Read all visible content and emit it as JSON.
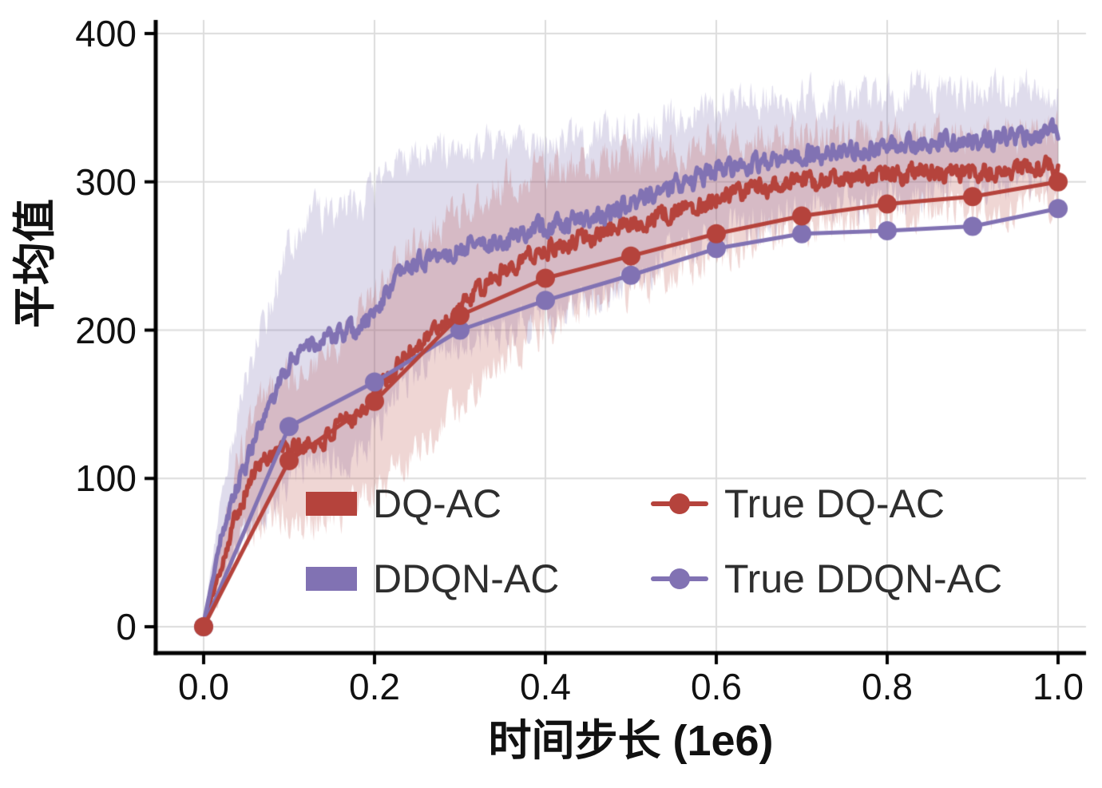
{
  "chart_data": {
    "type": "line",
    "title": "",
    "xlabel": "时间步长 (1e6)",
    "ylabel": "平均值",
    "xlim": [
      0,
      1.0
    ],
    "ylim": [
      0,
      400
    ],
    "xticks": [
      "0.0",
      "0.2",
      "0.4",
      "0.6",
      "0.8",
      "1.0"
    ],
    "xtick_values": [
      0,
      0.2,
      0.4,
      0.6,
      0.8,
      1.0
    ],
    "yticks": [
      "0",
      "100",
      "200",
      "300",
      "400"
    ],
    "ytick_values": [
      0,
      100,
      200,
      300,
      400
    ],
    "grid": true,
    "grid_color": "#dcdcdc",
    "axis_color": "#000000",
    "legend_position": "inside-lower-right",
    "colors": {
      "red": "#b5433c",
      "purple": "#8172b3"
    },
    "series": [
      {
        "name": "DQ-AC",
        "kind": "mean_with_band",
        "color": "#b5433c",
        "band_color": "rgba(181,67,60,0.22)",
        "x_uniform": [
          0,
          1
        ],
        "mean": [
          2,
          40,
          80,
          105,
          118,
          120,
          122,
          125,
          135,
          145,
          155,
          170,
          185,
          195,
          205,
          215,
          225,
          235,
          245,
          250,
          255,
          258,
          262,
          265,
          268,
          272,
          275,
          278,
          282,
          285,
          290,
          292,
          295,
          297,
          298,
          300,
          300,
          302,
          303,
          304,
          305,
          304,
          306,
          305,
          306,
          305,
          306,
          308,
          308,
          310,
          312
        ],
        "band_halfwidth": [
          3,
          18,
          30,
          38,
          42,
          48,
          52,
          55,
          58,
          60,
          65,
          68,
          70,
          70,
          68,
          65,
          62,
          60,
          58,
          55,
          52,
          50,
          48,
          46,
          45,
          44,
          42,
          40,
          38,
          37,
          36,
          35,
          34,
          33,
          32,
          31,
          30,
          30,
          29,
          28,
          28,
          27,
          27,
          26,
          26,
          25,
          25,
          24,
          24,
          23,
          22
        ]
      },
      {
        "name": "DDQN-AC",
        "kind": "mean_with_band",
        "color": "#8172b3",
        "band_color": "rgba(129,114,179,0.25)",
        "x_uniform": [
          0,
          1
        ],
        "mean": [
          2,
          60,
          95,
          125,
          150,
          178,
          192,
          194,
          196,
          200,
          212,
          230,
          242,
          248,
          252,
          255,
          258,
          260,
          262,
          266,
          270,
          272,
          274,
          276,
          280,
          285,
          290,
          295,
          300,
          303,
          307,
          310,
          313,
          315,
          317,
          318,
          319,
          320,
          321,
          322,
          323,
          324,
          325,
          326,
          327,
          328,
          329,
          330,
          331,
          332,
          333
        ],
        "band_halfwidth": [
          3,
          25,
          45,
          60,
          72,
          80,
          85,
          86,
          85,
          83,
          80,
          78,
          75,
          72,
          70,
          68,
          66,
          64,
          62,
          60,
          58,
          56,
          55,
          53,
          52,
          50,
          48,
          46,
          45,
          44,
          43,
          42,
          41,
          40,
          39,
          38,
          38,
          37,
          37,
          36,
          36,
          35,
          35,
          34,
          34,
          33,
          33,
          32,
          32,
          31,
          30
        ]
      },
      {
        "name": "True DQ-AC",
        "kind": "line_markers",
        "color": "#b5433c",
        "x": [
          0,
          0.1,
          0.2,
          0.3,
          0.4,
          0.5,
          0.6,
          0.7,
          0.8,
          0.9,
          1.0
        ],
        "y": [
          0,
          112,
          152,
          210,
          235,
          250,
          265,
          277,
          285,
          290,
          300
        ]
      },
      {
        "name": "True DDQN-AC",
        "kind": "line_markers",
        "color": "#8172b3",
        "x": [
          0,
          0.1,
          0.2,
          0.3,
          0.4,
          0.5,
          0.6,
          0.7,
          0.8,
          0.9,
          1.0
        ],
        "y": [
          0,
          135,
          165,
          200,
          220,
          237,
          255,
          265,
          267,
          270,
          282
        ]
      }
    ]
  }
}
